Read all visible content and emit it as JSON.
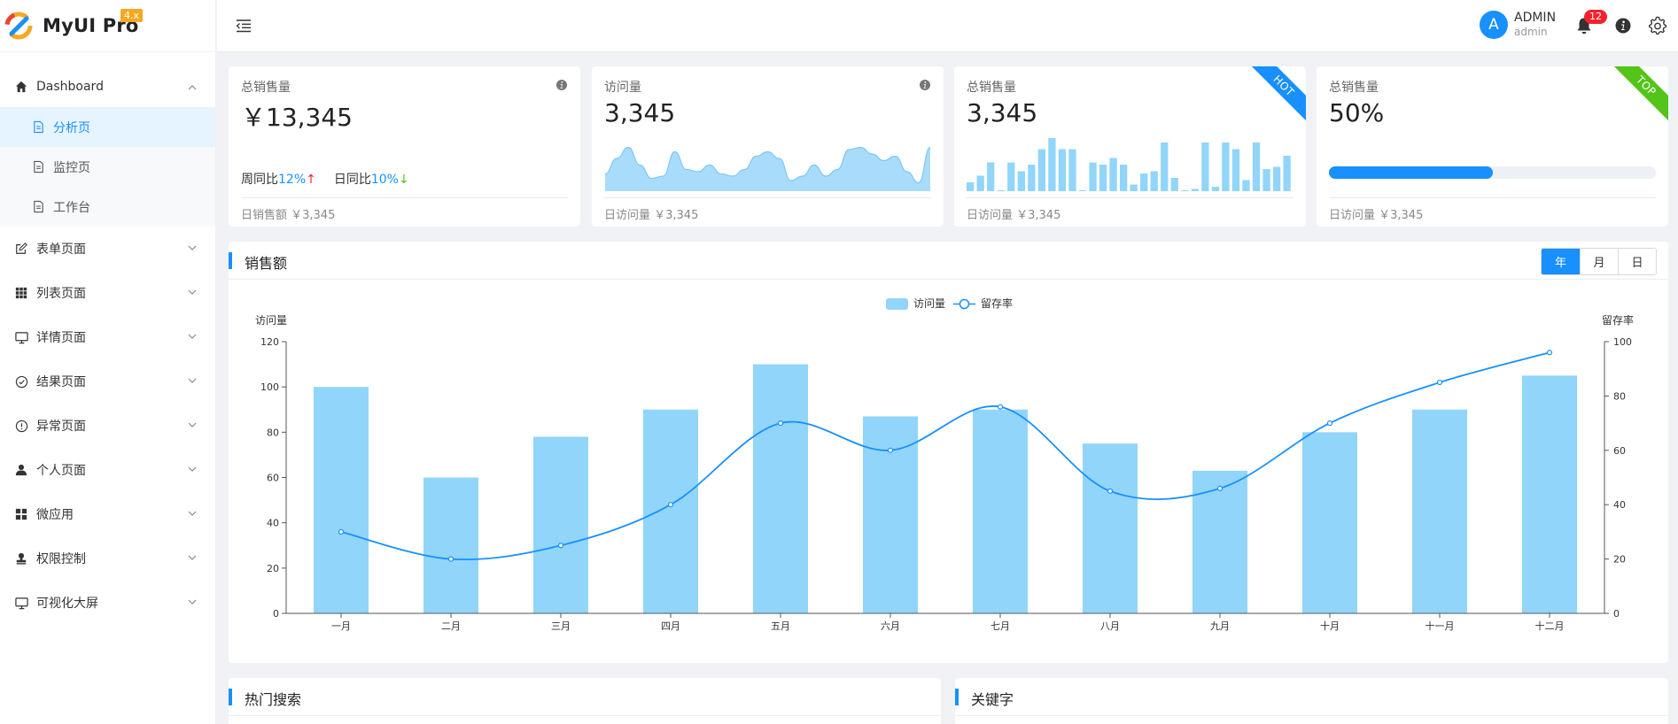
{
  "app": {
    "title": "MyUI Pro",
    "version": "4.x"
  },
  "sidebar": {
    "dashboard": {
      "label": "Dashboard",
      "icon": "home-icon"
    },
    "sub_items": [
      {
        "label": "分析页",
        "active": true
      },
      {
        "label": "监控页",
        "active": false
      },
      {
        "label": "工作台",
        "active": false
      }
    ],
    "items": [
      {
        "label": "表单页面",
        "icon": "edit-icon"
      },
      {
        "label": "列表页面",
        "icon": "grid-icon"
      },
      {
        "label": "详情页面",
        "icon": "monitor-icon"
      },
      {
        "label": "结果页面",
        "icon": "check-circle-icon"
      },
      {
        "label": "异常页面",
        "icon": "exclamation-circle-icon"
      },
      {
        "label": "个人页面",
        "icon": "user-icon"
      },
      {
        "label": "微应用",
        "icon": "apps-icon"
      },
      {
        "label": "权限控制",
        "icon": "stamp-icon"
      },
      {
        "label": "可视化大屏",
        "icon": "screen-icon"
      }
    ]
  },
  "header": {
    "user_name": "ADMIN",
    "user_sub": "admin",
    "avatar_letter": "A",
    "notification_count": "12"
  },
  "cards": [
    {
      "label": "总销售量",
      "value": "￥13,345",
      "week_label": "周同比",
      "week_pct": "12%",
      "week_arrow": "↑",
      "day_label": "日同比",
      "day_pct": "10%",
      "day_arrow": "↓",
      "footer": "日销售额 ￥3,345"
    },
    {
      "label": "访问量",
      "value": "3,345",
      "footer": "日访问量 ￥3,345"
    },
    {
      "label": "总销售量",
      "value": "3,345",
      "footer": "日访问量 ￥3,345",
      "ribbon": "HOT"
    },
    {
      "label": "总销售量",
      "value": "50%",
      "progress": 0.5,
      "footer": "日访问量 ￥3,345",
      "ribbon": "TOP"
    }
  ],
  "colors": {
    "primary": "#1890ff",
    "bar": "#91d5fa",
    "hot": "#1890ff",
    "top": "#52c41a"
  },
  "sales": {
    "title": "销售额",
    "periods": [
      "年",
      "月",
      "日"
    ],
    "active_period": "年"
  },
  "chart_data": {
    "type": "bar+line",
    "categories": [
      "一月",
      "二月",
      "三月",
      "四月",
      "五月",
      "六月",
      "七月",
      "八月",
      "九月",
      "十月",
      "十一月",
      "十二月"
    ],
    "series": [
      {
        "name": "访问量",
        "type": "bar",
        "axis": "left",
        "values": [
          100,
          60,
          78,
          90,
          110,
          87,
          90,
          75,
          63,
          80,
          90,
          105
        ]
      },
      {
        "name": "留存率",
        "type": "line",
        "axis": "right",
        "values": [
          30,
          20,
          25,
          40,
          70,
          60,
          76,
          45,
          46,
          70,
          85,
          96
        ]
      }
    ],
    "ylabel_left": "访问量",
    "ylabel_right": "留存率",
    "ylim_left": [
      0,
      120
    ],
    "yticks_left": [
      0,
      20,
      40,
      60,
      80,
      100,
      120
    ],
    "ylim_right": [
      0,
      100
    ],
    "yticks_right": [
      0,
      20,
      40,
      60,
      80,
      100
    ],
    "legend": "top-center"
  },
  "mini_bar_values": [
    4,
    7,
    13,
    0,
    13,
    9,
    12,
    19,
    24,
    19,
    19,
    0,
    13,
    12,
    15,
    12,
    3,
    8,
    9,
    22,
    6,
    0,
    1,
    22,
    2,
    22,
    19,
    5,
    22,
    10,
    11,
    16
  ],
  "mini_area_values": [
    0.35,
    0.7,
    0.95,
    0.55,
    0.25,
    0.3,
    0.85,
    0.45,
    0.4,
    0.55,
    0.35,
    0.3,
    0.45,
    0.75,
    0.85,
    0.7,
    0.2,
    0.3,
    0.55,
    0.3,
    0.45,
    0.9,
    0.95,
    0.8,
    0.65,
    0.75,
    0.4,
    0.15,
    0.95
  ],
  "bottom_panels": [
    {
      "title": "热门搜索"
    },
    {
      "title": "关键字"
    }
  ]
}
